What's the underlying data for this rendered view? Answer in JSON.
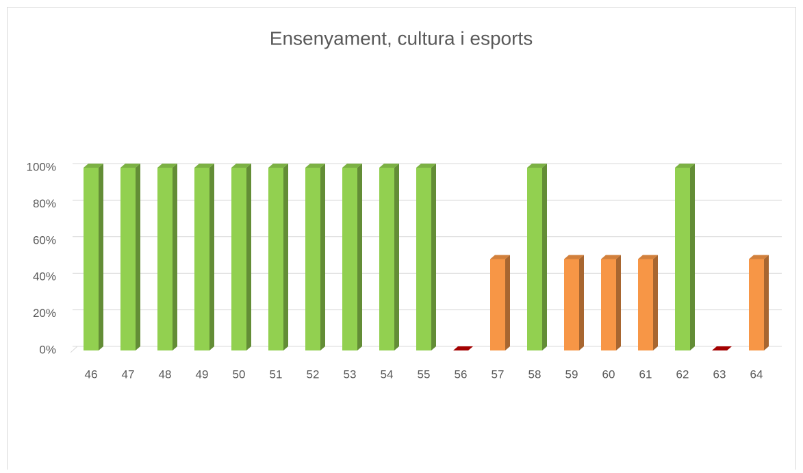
{
  "chart_data": {
    "type": "bar3d",
    "title": "Ensenyament, cultura i esports",
    "categories": [
      "46",
      "47",
      "48",
      "49",
      "50",
      "51",
      "52",
      "53",
      "54",
      "55",
      "56",
      "57",
      "58",
      "59",
      "60",
      "61",
      "62",
      "63",
      "64"
    ],
    "values": [
      100,
      100,
      100,
      100,
      100,
      100,
      100,
      100,
      100,
      100,
      0,
      50,
      100,
      50,
      50,
      50,
      100,
      0,
      50
    ],
    "colors": [
      "#92d050",
      "#92d050",
      "#92d050",
      "#92d050",
      "#92d050",
      "#92d050",
      "#92d050",
      "#92d050",
      "#92d050",
      "#92d050",
      "#c00000",
      "#f79646",
      "#92d050",
      "#f79646",
      "#f79646",
      "#f79646",
      "#92d050",
      "#c00000",
      "#f79646"
    ],
    "ylim": [
      0,
      100
    ],
    "yticks": [
      {
        "value": 0,
        "label": "0%"
      },
      {
        "value": 20,
        "label": "20%"
      },
      {
        "value": 40,
        "label": "40%"
      },
      {
        "value": 60,
        "label": "60%"
      },
      {
        "value": 80,
        "label": "80%"
      },
      {
        "value": 100,
        "label": "100%"
      }
    ],
    "grid": true
  }
}
